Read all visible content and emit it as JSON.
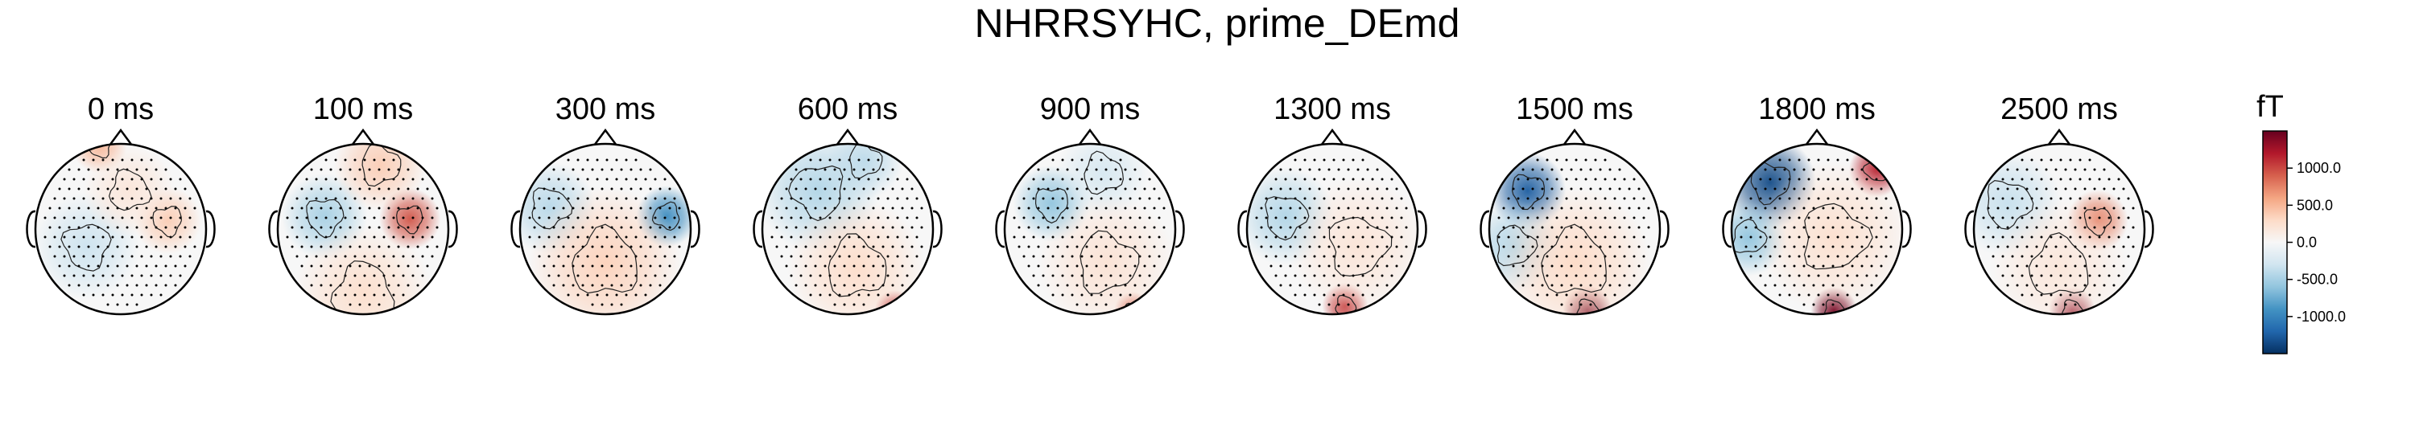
{
  "figure": {
    "title": "NHRRSYHC, prime_DEmd"
  },
  "chart_data": {
    "type": "heatmap",
    "title": "NHRRSYHC, prime_DEmd",
    "panels": [
      {
        "label": "0 ms",
        "time_ms": 0,
        "blobs": [
          {
            "u": 0.55,
            "v": -0.1,
            "r": 0.22,
            "a": 380
          },
          {
            "u": -0.4,
            "v": 0.2,
            "r": 0.35,
            "a": -320
          },
          {
            "u": -0.25,
            "v": -0.98,
            "r": 0.18,
            "a": 500
          },
          {
            "u": 0.1,
            "v": -0.45,
            "r": 0.3,
            "a": 180
          }
        ]
      },
      {
        "label": "100 ms",
        "time_ms": 100,
        "blobs": [
          {
            "u": 0.55,
            "v": -0.12,
            "r": 0.2,
            "a": 950
          },
          {
            "u": -0.45,
            "v": -0.15,
            "r": 0.28,
            "a": -500
          },
          {
            "u": 0.0,
            "v": 0.75,
            "r": 0.45,
            "a": 260
          },
          {
            "u": 0.2,
            "v": -0.75,
            "r": 0.3,
            "a": 380
          }
        ]
      },
      {
        "label": "300 ms",
        "time_ms": 300,
        "blobs": [
          {
            "u": 0.72,
            "v": -0.15,
            "r": 0.2,
            "a": -950
          },
          {
            "u": -0.65,
            "v": -0.25,
            "r": 0.3,
            "a": -420
          },
          {
            "u": 0.0,
            "v": 0.4,
            "r": 0.5,
            "a": 350
          }
        ]
      },
      {
        "label": "600 ms",
        "time_ms": 600,
        "blobs": [
          {
            "u": -0.35,
            "v": -0.45,
            "r": 0.4,
            "a": -450
          },
          {
            "u": 0.2,
            "v": -0.8,
            "r": 0.25,
            "a": -400
          },
          {
            "u": 0.55,
            "v": 0.95,
            "r": 0.13,
            "a": 1100
          },
          {
            "u": 0.1,
            "v": 0.45,
            "r": 0.45,
            "a": 280
          }
        ]
      },
      {
        "label": "900 ms",
        "time_ms": 900,
        "blobs": [
          {
            "u": -0.45,
            "v": -0.3,
            "r": 0.25,
            "a": -600
          },
          {
            "u": 0.15,
            "v": -0.65,
            "r": 0.3,
            "a": -250
          },
          {
            "u": 0.5,
            "v": 0.95,
            "r": 0.12,
            "a": 900
          },
          {
            "u": 0.2,
            "v": 0.4,
            "r": 0.45,
            "a": 220
          }
        ]
      },
      {
        "label": "1300 ms",
        "time_ms": 1300,
        "blobs": [
          {
            "u": -0.55,
            "v": -0.15,
            "r": 0.32,
            "a": -450
          },
          {
            "u": 0.15,
            "v": 0.9,
            "r": 0.15,
            "a": 1050
          },
          {
            "u": 0.3,
            "v": 0.2,
            "r": 0.45,
            "a": 200
          }
        ]
      },
      {
        "label": "1500 ms",
        "time_ms": 1500,
        "blobs": [
          {
            "u": -0.55,
            "v": -0.45,
            "r": 0.25,
            "a": -1250
          },
          {
            "u": -0.7,
            "v": 0.2,
            "r": 0.3,
            "a": -450
          },
          {
            "u": 0.15,
            "v": 0.95,
            "r": 0.16,
            "a": 1450
          },
          {
            "u": 0.0,
            "v": 0.4,
            "r": 0.5,
            "a": 300
          }
        ]
      },
      {
        "label": "1800 ms",
        "time_ms": 1800,
        "blobs": [
          {
            "u": -0.55,
            "v": -0.55,
            "r": 0.3,
            "a": -1350
          },
          {
            "u": -0.8,
            "v": 0.1,
            "r": 0.25,
            "a": -600
          },
          {
            "u": 0.7,
            "v": -0.7,
            "r": 0.18,
            "a": 1150
          },
          {
            "u": 0.2,
            "v": 0.95,
            "r": 0.15,
            "a": 1450
          },
          {
            "u": 0.2,
            "v": 0.1,
            "r": 0.5,
            "a": 250
          }
        ]
      },
      {
        "label": "2500 ms",
        "time_ms": 2500,
        "blobs": [
          {
            "u": 0.45,
            "v": -0.1,
            "r": 0.2,
            "a": 750
          },
          {
            "u": -0.6,
            "v": -0.3,
            "r": 0.35,
            "a": -350
          },
          {
            "u": 0.15,
            "v": 0.95,
            "r": 0.15,
            "a": 1350
          },
          {
            "u": 0.0,
            "v": 0.45,
            "r": 0.45,
            "a": 180
          }
        ]
      }
    ],
    "colorbar": {
      "unit": "fT",
      "range": [
        -1500,
        1500
      ],
      "ticks": [
        1000,
        500,
        0,
        -500,
        -1000
      ],
      "tick_labels": [
        "1000.0",
        "500.0",
        "0.0",
        "-500.0",
        "-1000.0"
      ],
      "colormap": "RdBu_r"
    },
    "grid": false
  }
}
